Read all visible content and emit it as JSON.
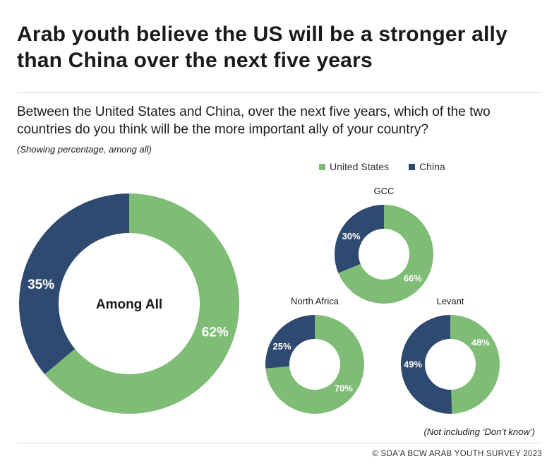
{
  "title": "Arab youth believe the US will be a stronger ally than China over the next five years",
  "question": "Between the United States and China, over the next five years, which of the two countries do you think will be the more important ally of your country?",
  "note": "(Showing percentage, among all)",
  "footnote": "(Not including ‘Don’t know’)",
  "source": "©  SDA'A BCW ARAB YOUTH SURVEY 2023",
  "legend": [
    {
      "label": "United States",
      "color": "#7fbc75"
    },
    {
      "label": "China",
      "color": "#2e4a70"
    }
  ],
  "chart_data": [
    {
      "type": "pie",
      "variant": "donut",
      "center_label": "Among All",
      "series": [
        {
          "name": "United States",
          "value": 62,
          "label": "62%",
          "color": "#7fbc75"
        },
        {
          "name": "China",
          "value": 35,
          "label": "35%",
          "color": "#2e4a70"
        }
      ]
    },
    {
      "type": "pie",
      "variant": "donut",
      "title": "GCC",
      "series": [
        {
          "name": "United States",
          "value": 66,
          "label": "66%",
          "color": "#7fbc75"
        },
        {
          "name": "China",
          "value": 30,
          "label": "30%",
          "color": "#2e4a70"
        }
      ]
    },
    {
      "type": "pie",
      "variant": "donut",
      "title": "North Africa",
      "series": [
        {
          "name": "United States",
          "value": 70,
          "label": "70%",
          "color": "#7fbc75"
        },
        {
          "name": "China",
          "value": 25,
          "label": "25%",
          "color": "#2e4a70"
        }
      ]
    },
    {
      "type": "pie",
      "variant": "donut",
      "title": "Levant",
      "series": [
        {
          "name": "United States",
          "value": 48,
          "label": "48%",
          "color": "#7fbc75"
        },
        {
          "name": "China",
          "value": 49,
          "label": "49%",
          "color": "#2e4a70"
        }
      ]
    }
  ]
}
